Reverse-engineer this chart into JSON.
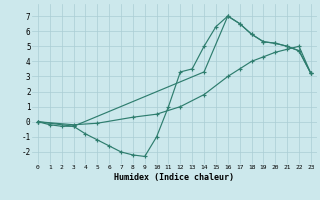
{
  "xlabel": "Humidex (Indice chaleur)",
  "bg_color": "#cce8ec",
  "grid_color": "#aacdd4",
  "line_color": "#2e7d6e",
  "xlim": [
    -0.5,
    23.5
  ],
  "ylim": [
    -2.8,
    7.8
  ],
  "xticks": [
    0,
    1,
    2,
    3,
    4,
    5,
    6,
    7,
    8,
    9,
    10,
    11,
    12,
    13,
    14,
    15,
    16,
    17,
    18,
    19,
    20,
    21,
    22,
    23
  ],
  "yticks": [
    -2,
    -1,
    0,
    1,
    2,
    3,
    4,
    5,
    6,
    7
  ],
  "line1_x": [
    0,
    1,
    2,
    3,
    4,
    5,
    6,
    7,
    8,
    9,
    10,
    11,
    12,
    13,
    14,
    15,
    16,
    17,
    18,
    19,
    20,
    21,
    22,
    23
  ],
  "line1_y": [
    0.0,
    -0.2,
    -0.3,
    -0.3,
    -0.8,
    -1.2,
    -1.6,
    -2.0,
    -2.2,
    -2.3,
    -1.0,
    1.0,
    3.3,
    3.5,
    5.0,
    6.3,
    7.0,
    6.5,
    5.8,
    5.3,
    5.2,
    5.0,
    4.7,
    3.2
  ],
  "line2_x": [
    0,
    3,
    5,
    8,
    10,
    12,
    14,
    16,
    17,
    18,
    19,
    20,
    21,
    22,
    23
  ],
  "line2_y": [
    0.0,
    -0.2,
    -0.1,
    0.3,
    0.5,
    1.0,
    1.8,
    3.0,
    3.5,
    4.0,
    4.3,
    4.6,
    4.8,
    5.0,
    3.2
  ],
  "line3_x": [
    0,
    3,
    14,
    16,
    17,
    18,
    19,
    20,
    21,
    22,
    23
  ],
  "line3_y": [
    0.0,
    -0.3,
    3.3,
    7.0,
    6.5,
    5.8,
    5.3,
    5.2,
    5.0,
    4.7,
    3.2
  ]
}
